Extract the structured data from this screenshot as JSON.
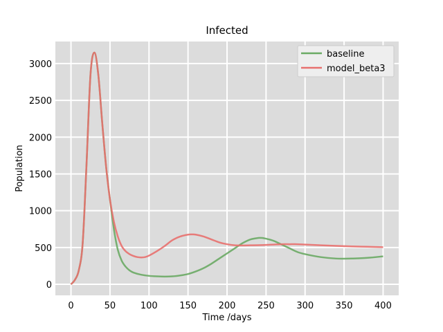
{
  "chart_data": {
    "type": "line",
    "title": "Infected",
    "xlabel": "Time /days",
    "ylabel": "Population",
    "xlim": [
      -20,
      420
    ],
    "ylim": [
      -150,
      3300
    ],
    "xticks": [
      0,
      50,
      100,
      150,
      200,
      250,
      300,
      350,
      400
    ],
    "yticks": [
      0,
      500,
      1000,
      1500,
      2000,
      2500,
      3000
    ],
    "grid": true,
    "legend_position": "top-right",
    "background": "#dcdcdc",
    "series": [
      {
        "name": "baseline",
        "color": "#6aaa64",
        "x": [
          0,
          5,
          10,
          15,
          20,
          25,
          30,
          35,
          40,
          45,
          50,
          55,
          60,
          65,
          70,
          75,
          80,
          90,
          100,
          110,
          120,
          130,
          140,
          150,
          160,
          170,
          180,
          190,
          200,
          210,
          220,
          230,
          240,
          245,
          250,
          260,
          270,
          280,
          290,
          300,
          320,
          340,
          350,
          360,
          380,
          400
        ],
        "y": [
          0,
          60,
          190,
          560,
          1650,
          2850,
          3150,
          2850,
          2200,
          1600,
          1150,
          750,
          470,
          320,
          240,
          190,
          160,
          130,
          115,
          108,
          105,
          108,
          120,
          140,
          175,
          220,
          280,
          350,
          420,
          490,
          560,
          610,
          630,
          630,
          620,
          590,
          540,
          490,
          440,
          410,
          370,
          350,
          348,
          350,
          360,
          380
        ]
      },
      {
        "name": "model_beta3",
        "color": "#e8706e",
        "x": [
          0,
          5,
          10,
          15,
          20,
          25,
          30,
          35,
          40,
          45,
          50,
          55,
          60,
          65,
          70,
          75,
          80,
          85,
          90,
          95,
          100,
          110,
          120,
          130,
          140,
          150,
          155,
          160,
          170,
          180,
          190,
          200,
          210,
          220,
          230,
          240,
          250,
          260,
          270,
          280,
          290,
          300,
          320,
          340,
          360,
          380,
          400
        ],
        "y": [
          0,
          60,
          190,
          560,
          1650,
          2850,
          3150,
          2850,
          2200,
          1600,
          1150,
          850,
          650,
          520,
          450,
          410,
          385,
          370,
          365,
          370,
          390,
          450,
          520,
          600,
          650,
          675,
          678,
          675,
          650,
          610,
          570,
          545,
          530,
          528,
          530,
          532,
          535,
          540,
          545,
          545,
          545,
          540,
          530,
          522,
          515,
          510,
          505
        ]
      }
    ]
  }
}
